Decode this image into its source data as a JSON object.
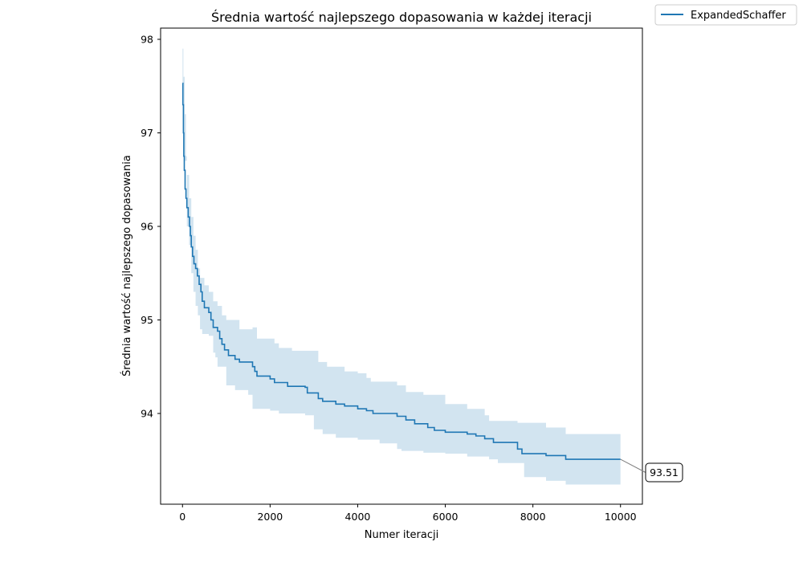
{
  "chart_data": {
    "type": "line",
    "title": "Średnia wartość najlepszego dopasowania w każdej iteracji",
    "xlabel": "Numer iteracji",
    "ylabel": "Średnia wartość najlepszego dopasowania",
    "xlim": [
      -500,
      10500
    ],
    "ylim": [
      93.03,
      98.12
    ],
    "xticks": [
      0,
      2000,
      4000,
      6000,
      8000,
      10000
    ],
    "yticks": [
      94,
      95,
      96,
      97,
      98
    ],
    "grid": false,
    "legend_position": "outside-top-right",
    "series": [
      {
        "name": "ExpandedSchaffer",
        "color": "#1f77b4",
        "band_color": "#1f77b4",
        "points": [
          [
            0,
            97.53
          ],
          [
            10,
            97.3
          ],
          [
            20,
            97.0
          ],
          [
            30,
            96.75
          ],
          [
            40,
            96.6
          ],
          [
            60,
            96.4
          ],
          [
            80,
            96.3
          ],
          [
            100,
            96.2
          ],
          [
            130,
            96.1
          ],
          [
            160,
            96.0
          ],
          [
            180,
            95.9
          ],
          [
            200,
            95.78
          ],
          [
            230,
            95.68
          ],
          [
            260,
            95.6
          ],
          [
            300,
            95.55
          ],
          [
            340,
            95.47
          ],
          [
            380,
            95.38
          ],
          [
            420,
            95.3
          ],
          [
            450,
            95.2
          ],
          [
            500,
            95.13
          ],
          [
            600,
            95.08
          ],
          [
            650,
            95.0
          ],
          [
            700,
            94.92
          ],
          [
            800,
            94.88
          ],
          [
            850,
            94.8
          ],
          [
            900,
            94.74
          ],
          [
            960,
            94.68
          ],
          [
            1050,
            94.62
          ],
          [
            1200,
            94.58
          ],
          [
            1300,
            94.55
          ],
          [
            1600,
            94.5
          ],
          [
            1650,
            94.45
          ],
          [
            1700,
            94.4
          ],
          [
            2000,
            94.37
          ],
          [
            2100,
            94.33
          ],
          [
            2400,
            94.29
          ],
          [
            2800,
            94.28
          ],
          [
            2850,
            94.22
          ],
          [
            3100,
            94.16
          ],
          [
            3200,
            94.13
          ],
          [
            3500,
            94.1
          ],
          [
            3700,
            94.08
          ],
          [
            4000,
            94.05
          ],
          [
            4200,
            94.03
          ],
          [
            4350,
            94.0
          ],
          [
            4900,
            93.97
          ],
          [
            5100,
            93.93
          ],
          [
            5300,
            93.89
          ],
          [
            5600,
            93.85
          ],
          [
            5750,
            93.82
          ],
          [
            6000,
            93.8
          ],
          [
            6500,
            93.78
          ],
          [
            6700,
            93.76
          ],
          [
            6900,
            93.73
          ],
          [
            7100,
            93.69
          ],
          [
            7650,
            93.62
          ],
          [
            7750,
            93.57
          ],
          [
            8300,
            93.55
          ],
          [
            8750,
            93.51
          ],
          [
            10000,
            93.51
          ]
        ],
        "band_lower": [
          [
            0,
            97.53
          ],
          [
            30,
            96.7
          ],
          [
            100,
            96.0
          ],
          [
            150,
            95.8
          ],
          [
            200,
            95.5
          ],
          [
            250,
            95.3
          ],
          [
            300,
            95.15
          ],
          [
            350,
            95.05
          ],
          [
            400,
            94.9
          ],
          [
            450,
            94.85
          ],
          [
            600,
            94.83
          ],
          [
            700,
            94.65
          ],
          [
            750,
            94.6
          ],
          [
            800,
            94.5
          ],
          [
            1000,
            94.3
          ],
          [
            1200,
            94.25
          ],
          [
            1500,
            94.2
          ],
          [
            1600,
            94.05
          ],
          [
            2000,
            94.03
          ],
          [
            2200,
            94.0
          ],
          [
            2800,
            93.98
          ],
          [
            3000,
            93.83
          ],
          [
            3200,
            93.78
          ],
          [
            3500,
            93.74
          ],
          [
            4000,
            93.72
          ],
          [
            4500,
            93.68
          ],
          [
            4900,
            93.62
          ],
          [
            5000,
            93.6
          ],
          [
            5500,
            93.58
          ],
          [
            6000,
            93.57
          ],
          [
            6500,
            93.54
          ],
          [
            7000,
            93.51
          ],
          [
            7200,
            93.47
          ],
          [
            7800,
            93.32
          ],
          [
            8300,
            93.28
          ],
          [
            8750,
            93.24
          ],
          [
            10000,
            93.24
          ]
        ],
        "band_upper": [
          [
            0,
            97.9
          ],
          [
            20,
            97.6
          ],
          [
            50,
            97.2
          ],
          [
            80,
            96.75
          ],
          [
            100,
            96.55
          ],
          [
            150,
            96.3
          ],
          [
            200,
            96.1
          ],
          [
            250,
            95.9
          ],
          [
            300,
            95.75
          ],
          [
            350,
            95.55
          ],
          [
            400,
            95.45
          ],
          [
            500,
            95.37
          ],
          [
            600,
            95.3
          ],
          [
            700,
            95.2
          ],
          [
            800,
            95.15
          ],
          [
            900,
            95.05
          ],
          [
            1000,
            95.0
          ],
          [
            1300,
            94.9
          ],
          [
            1600,
            94.92
          ],
          [
            1700,
            94.8
          ],
          [
            2100,
            94.75
          ],
          [
            2200,
            94.7
          ],
          [
            2500,
            94.67
          ],
          [
            2800,
            94.67
          ],
          [
            3100,
            94.55
          ],
          [
            3300,
            94.5
          ],
          [
            3700,
            94.45
          ],
          [
            4000,
            94.43
          ],
          [
            4200,
            94.38
          ],
          [
            4300,
            94.34
          ],
          [
            4900,
            94.3
          ],
          [
            5100,
            94.23
          ],
          [
            5500,
            94.2
          ],
          [
            6000,
            94.1
          ],
          [
            6500,
            94.05
          ],
          [
            6900,
            93.98
          ],
          [
            7000,
            93.92
          ],
          [
            7650,
            93.9
          ],
          [
            8300,
            93.85
          ],
          [
            8750,
            93.78
          ],
          [
            10000,
            93.78
          ]
        ]
      }
    ],
    "annotations": [
      {
        "text": "93.51",
        "x": 10000,
        "y": 93.51
      }
    ]
  }
}
